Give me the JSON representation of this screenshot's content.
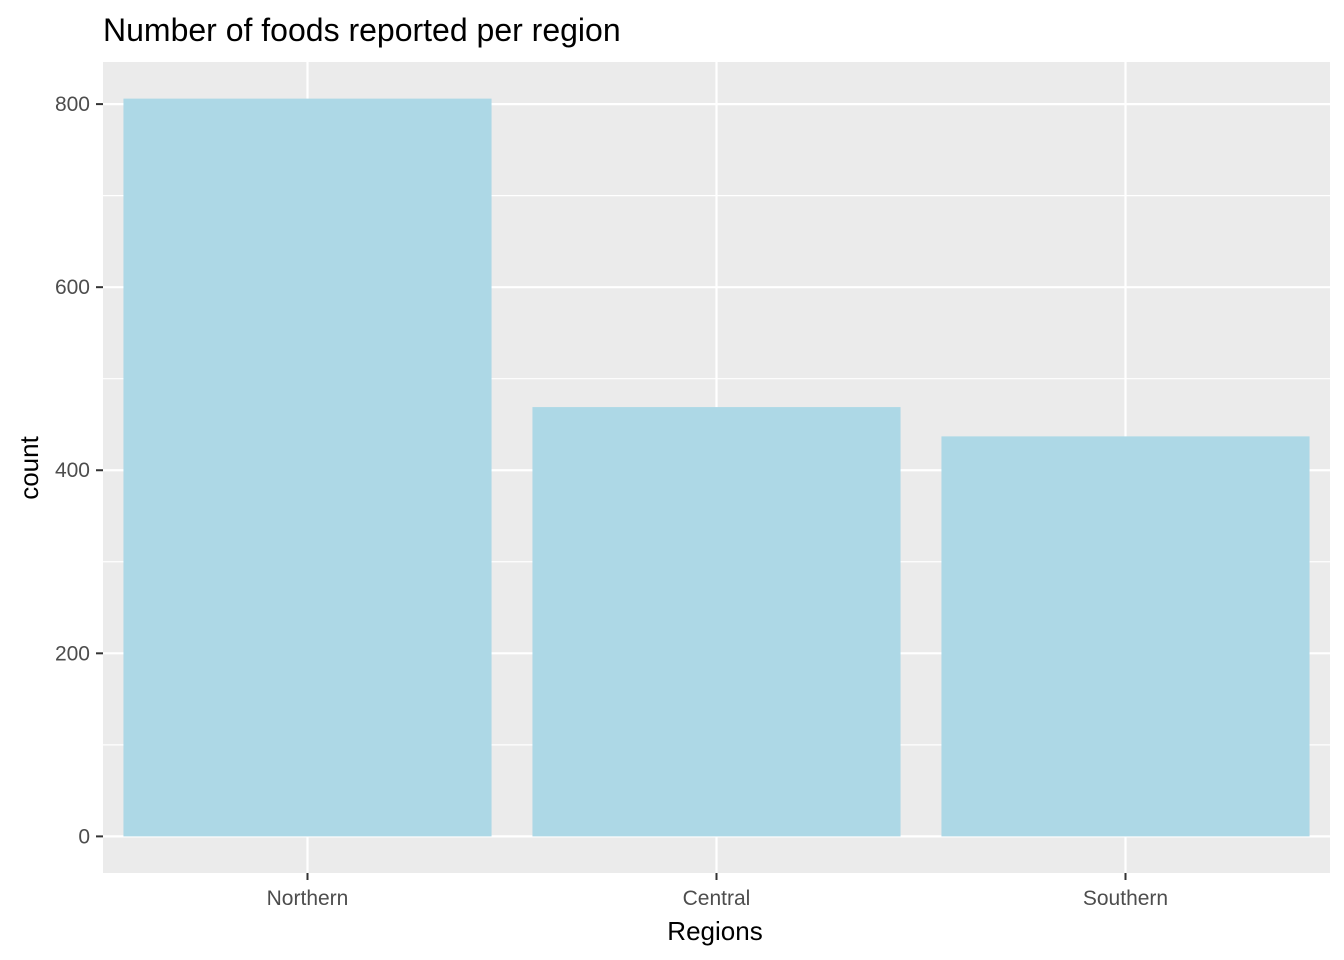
{
  "chart_data": {
    "type": "bar",
    "title": "Number of foods reported per region",
    "xlabel": "Regions",
    "ylabel": "count",
    "categories": [
      "Northern",
      "Central",
      "Southern"
    ],
    "values": [
      806,
      469,
      437
    ],
    "ylim": [
      -40,
      846
    ],
    "yticks": [
      0,
      200,
      400,
      600,
      800
    ],
    "y_minor_ticks": [
      100,
      300,
      500,
      700
    ],
    "grid": true,
    "legend": "none",
    "colors": {
      "bar": "#add8e6",
      "panel": "#ebebeb",
      "grid": "#ffffff",
      "ticks": "#333333"
    }
  }
}
